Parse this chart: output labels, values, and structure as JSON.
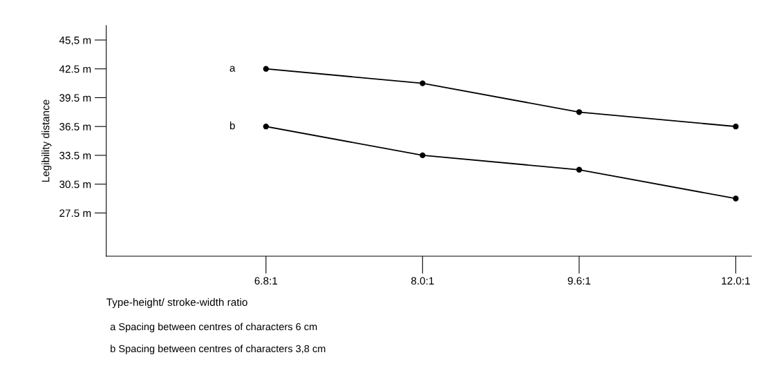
{
  "chart_data": {
    "type": "line",
    "xlabel": "Type-height/ stroke-width ratio",
    "ylabel": "Legibility distance",
    "categories": [
      "6.8:1",
      "8.0:1",
      "9.6:1",
      "12.0:1"
    ],
    "series": [
      {
        "name": "a",
        "color": "#000000",
        "values": [
          42.5,
          41.0,
          38.0,
          36.5
        ]
      },
      {
        "name": "b",
        "color": "#000000",
        "values": [
          36.5,
          33.5,
          32.0,
          29.0
        ]
      }
    ],
    "ylim": [
      23,
      47
    ],
    "yticks": [
      {
        "value": 27.5,
        "label": "27.5 m"
      },
      {
        "value": 30.5,
        "label": "30.5 m"
      },
      {
        "value": 33.5,
        "label": "33.5 m"
      },
      {
        "value": 36.5,
        "label": "36.5 m"
      },
      {
        "value": 39.5,
        "label": "39.5 m"
      },
      {
        "value": 42.5,
        "label": "42.5 m"
      },
      {
        "value": 45.5,
        "label": "45,5 m"
      }
    ],
    "marker": "circle",
    "line_style": "solid",
    "grid": false,
    "legend": false,
    "annotations": [
      "a Spacing between centres of characters 6 cm",
      "b Spacing between centres of characters 3,8 cm"
    ]
  }
}
